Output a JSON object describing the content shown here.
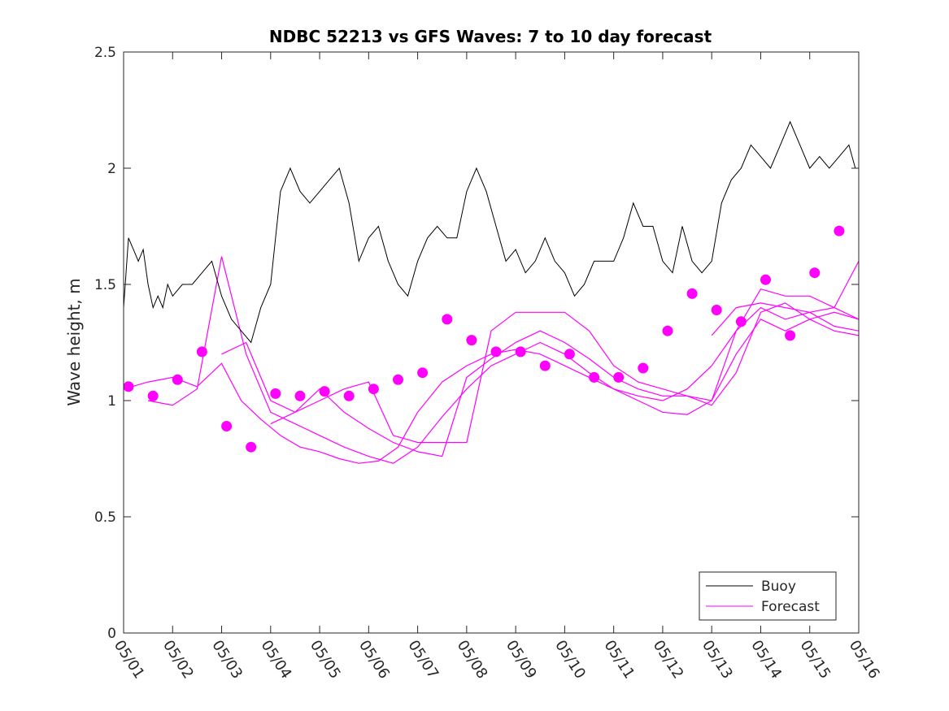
{
  "chart_data": {
    "type": "line",
    "title": "NDBC 52213 vs GFS Waves: 7 to 10 day forecast",
    "xlabel": "",
    "ylabel": "Wave height, m",
    "xlim_days": [
      0,
      15
    ],
    "ylim": [
      0,
      2.5
    ],
    "x_ticks": [
      "05/01",
      "05/02",
      "05/03",
      "05/04",
      "05/05",
      "05/06",
      "05/07",
      "05/08",
      "05/09",
      "05/10",
      "05/11",
      "05/12",
      "05/13",
      "05/14",
      "05/15",
      "05/16"
    ],
    "y_ticks": [
      "0",
      "0.5",
      "1",
      "1.5",
      "2",
      "2.5"
    ],
    "y_tick_values": [
      0,
      0.5,
      1,
      1.5,
      2,
      2.5
    ],
    "grid": false,
    "legend_position": "bottom-right",
    "colors": {
      "buoy": "#000000",
      "forecast": "#ff00ff"
    },
    "series": [
      {
        "name": "Buoy",
        "x": [
          0,
          0.1,
          0.2,
          0.3,
          0.4,
          0.5,
          0.6,
          0.7,
          0.8,
          0.9,
          1.0,
          1.2,
          1.4,
          1.6,
          1.8,
          2.0,
          2.2,
          2.4,
          2.6,
          2.8,
          3.0,
          3.2,
          3.4,
          3.6,
          3.8,
          4.0,
          4.2,
          4.4,
          4.6,
          4.8,
          5.0,
          5.2,
          5.4,
          5.6,
          5.8,
          6.0,
          6.2,
          6.4,
          6.6,
          6.8,
          7.0,
          7.2,
          7.4,
          7.6,
          7.8,
          8.0,
          8.2,
          8.4,
          8.6,
          8.8,
          9.0,
          9.2,
          9.4,
          9.6,
          9.8,
          10.0,
          10.2,
          10.4,
          10.6,
          10.8,
          11.0,
          11.2,
          11.4,
          11.6,
          11.8,
          12.0,
          12.2,
          12.4,
          12.6,
          12.8,
          13.0,
          13.2,
          13.4,
          13.6,
          13.8,
          14.0,
          14.2,
          14.4,
          14.6,
          14.8,
          14.93
        ],
        "values": [
          1.4,
          1.7,
          1.65,
          1.6,
          1.65,
          1.5,
          1.4,
          1.45,
          1.4,
          1.5,
          1.45,
          1.5,
          1.5,
          1.55,
          1.6,
          1.45,
          1.35,
          1.3,
          1.25,
          1.4,
          1.5,
          1.9,
          2.0,
          1.9,
          1.85,
          1.9,
          1.95,
          2.0,
          1.85,
          1.6,
          1.7,
          1.75,
          1.6,
          1.5,
          1.45,
          1.6,
          1.7,
          1.75,
          1.7,
          1.7,
          1.9,
          2.0,
          1.9,
          1.75,
          1.6,
          1.65,
          1.55,
          1.6,
          1.7,
          1.6,
          1.55,
          1.45,
          1.5,
          1.6,
          1.6,
          1.6,
          1.7,
          1.85,
          1.75,
          1.75,
          1.6,
          1.55,
          1.75,
          1.6,
          1.55,
          1.6,
          1.85,
          1.95,
          2.0,
          2.1,
          2.05,
          2.0,
          2.1,
          2.2,
          2.1,
          2.0,
          2.05,
          2.0,
          2.05,
          2.1,
          2.0
        ]
      },
      {
        "name": "Forecast",
        "segments": [
          {
            "x": [
              0.0,
              0.5,
              1.0,
              1.5,
              2.0,
              2.4,
              2.8,
              3.2,
              3.6,
              4.0,
              4.4,
              4.8,
              5.2,
              5.6,
              6.0,
              6.5,
              7.0,
              7.5,
              8.0,
              8.5,
              9.0,
              9.5,
              10.0,
              10.5,
              11.0,
              11.5,
              12.0,
              12.5,
              13.0,
              13.5,
              14.0,
              14.5,
              15.0
            ],
            "values": [
              1.05,
              1.08,
              1.1,
              1.06,
              1.16,
              1.0,
              0.92,
              0.85,
              0.8,
              0.78,
              0.75,
              0.73,
              0.74,
              0.8,
              0.95,
              1.08,
              1.15,
              1.2,
              1.22,
              1.2,
              1.15,
              1.1,
              1.05,
              1.02,
              1.0,
              1.05,
              1.15,
              1.3,
              1.4,
              1.35,
              1.38,
              1.32,
              1.3
            ]
          },
          {
            "x": [
              0.5,
              1.0,
              1.5,
              2.0,
              2.5,
              3.0,
              3.5,
              4.0,
              4.5,
              5.0,
              5.5,
              6.0,
              6.5,
              7.0,
              7.5,
              8.0,
              8.5,
              9.0,
              9.5,
              10.0,
              10.5,
              11.0,
              11.5,
              12.0,
              12.5,
              13.0,
              13.5,
              14.0,
              14.5,
              15.0
            ],
            "values": [
              1.0,
              0.98,
              1.05,
              1.62,
              1.2,
              0.95,
              0.9,
              0.85,
              0.8,
              0.76,
              0.73,
              0.8,
              0.93,
              1.05,
              1.15,
              1.2,
              1.25,
              1.2,
              1.12,
              1.05,
              1.0,
              0.95,
              0.94,
              1.0,
              1.2,
              1.35,
              1.3,
              1.35,
              1.3,
              1.28
            ]
          },
          {
            "x": [
              2.0,
              2.5,
              3.0,
              3.5,
              4.0,
              4.5,
              5.0,
              5.5,
              6.0,
              6.5,
              7.0,
              7.5,
              8.0,
              8.5,
              9.0,
              9.5,
              10.0,
              10.5,
              11.0,
              11.5,
              12.0,
              12.5,
              13.0,
              13.5,
              14.0,
              14.5,
              15.0
            ],
            "values": [
              1.2,
              1.25,
              1.0,
              0.95,
              1.05,
              0.95,
              0.88,
              0.82,
              0.78,
              0.76,
              1.1,
              1.18,
              1.25,
              1.3,
              1.25,
              1.18,
              1.1,
              1.05,
              1.02,
              1.02,
              0.98,
              1.12,
              1.38,
              1.42,
              1.35,
              1.38,
              1.35
            ]
          },
          {
            "x": [
              3.0,
              3.5,
              4.0,
              4.5,
              5.0,
              5.5,
              6.0,
              6.5,
              7.0,
              7.5,
              8.0,
              8.5,
              9.0,
              9.5,
              10.0,
              10.5,
              11.0,
              11.5,
              12.0,
              12.5,
              13.0,
              13.5,
              14.0,
              14.5,
              15.0
            ],
            "values": [
              0.9,
              0.95,
              1.0,
              1.05,
              1.08,
              0.85,
              0.82,
              0.82,
              0.82,
              1.3,
              1.38,
              1.38,
              1.38,
              1.3,
              1.15,
              1.08,
              1.05,
              1.02,
              1.0,
              1.3,
              1.48,
              1.45,
              1.45,
              1.4,
              1.35
            ]
          },
          {
            "x": [
              12.0,
              12.5,
              13.0,
              13.5,
              14.0,
              14.5,
              15.0
            ],
            "values": [
              1.28,
              1.4,
              1.42,
              1.4,
              1.38,
              1.4,
              1.6
            ]
          }
        ],
        "markers": {
          "x": [
            0.1,
            0.6,
            1.1,
            1.6,
            2.1,
            2.6,
            3.1,
            3.6,
            4.1,
            4.6,
            5.1,
            5.6,
            6.1,
            6.6,
            7.1,
            7.6,
            8.1,
            8.6,
            9.1,
            9.6,
            10.1,
            10.6,
            11.1,
            11.6,
            12.1,
            12.6,
            13.1,
            13.6,
            14.1,
            14.6
          ],
          "values": [
            1.06,
            1.02,
            1.09,
            1.21,
            0.89,
            0.8,
            1.03,
            1.02,
            1.04,
            1.02,
            1.05,
            1.09,
            1.12,
            1.35,
            1.26,
            1.21,
            1.21,
            1.15,
            1.2,
            1.1,
            1.1,
            1.14,
            1.3,
            1.46,
            1.39,
            1.34,
            1.52,
            1.28,
            1.55,
            1.73
          ]
        }
      }
    ],
    "legend": [
      {
        "label": "Buoy",
        "color": "#000000"
      },
      {
        "label": "Forecast",
        "color": "#ff00ff"
      }
    ]
  }
}
